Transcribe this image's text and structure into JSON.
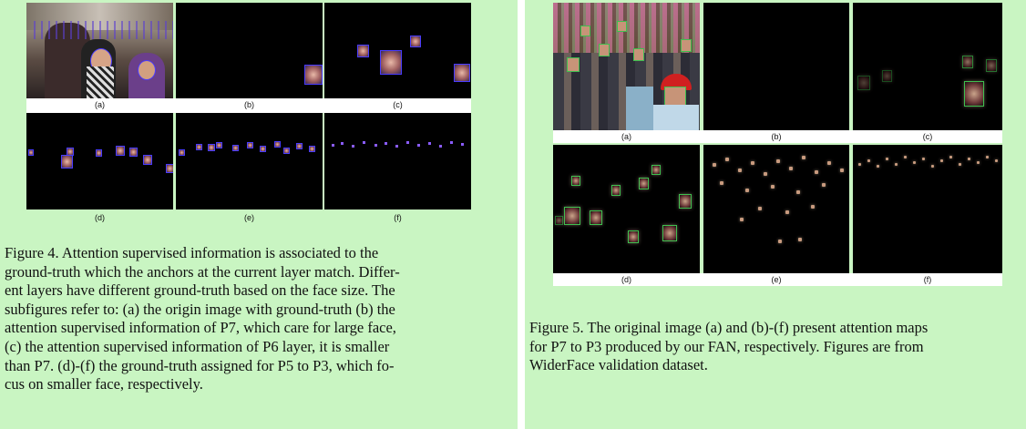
{
  "figure4": {
    "subfigures": [
      {
        "label": "(a)"
      },
      {
        "label": "(b)"
      },
      {
        "label": "(c)"
      },
      {
        "label": "(d)"
      },
      {
        "label": "(e)"
      },
      {
        "label": "(f)"
      }
    ],
    "caption_label": "Figure 4.",
    "caption_lines": [
      "Attention supervised information is associated to the",
      "ground-truth which the anchors at the current layer match. Differ-",
      "ent layers have different ground-truth based on the face size. The",
      "subfigures refer to: (a) the origin image with ground-truth (b) the",
      "attention supervised information of P7, which care for large face,",
      "(c) the attention supervised information of P6 layer, it is smaller",
      "than P7. (d)-(f) the ground-truth assigned for P5 to P3, which fo-",
      "cus on smaller face, respectively."
    ]
  },
  "figure5": {
    "subfigures": [
      {
        "label": "(a)"
      },
      {
        "label": "(b)"
      },
      {
        "label": "(c)"
      },
      {
        "label": "(d)"
      },
      {
        "label": "(e)"
      },
      {
        "label": "(f)"
      }
    ],
    "caption_label": "Figure 5.",
    "caption_lines": [
      "The original image (a) and (b)-(f) present attention maps",
      "for P7 to P3 produced by our FAN, respectively. Figures are from",
      "WiderFace validation dataset."
    ]
  }
}
